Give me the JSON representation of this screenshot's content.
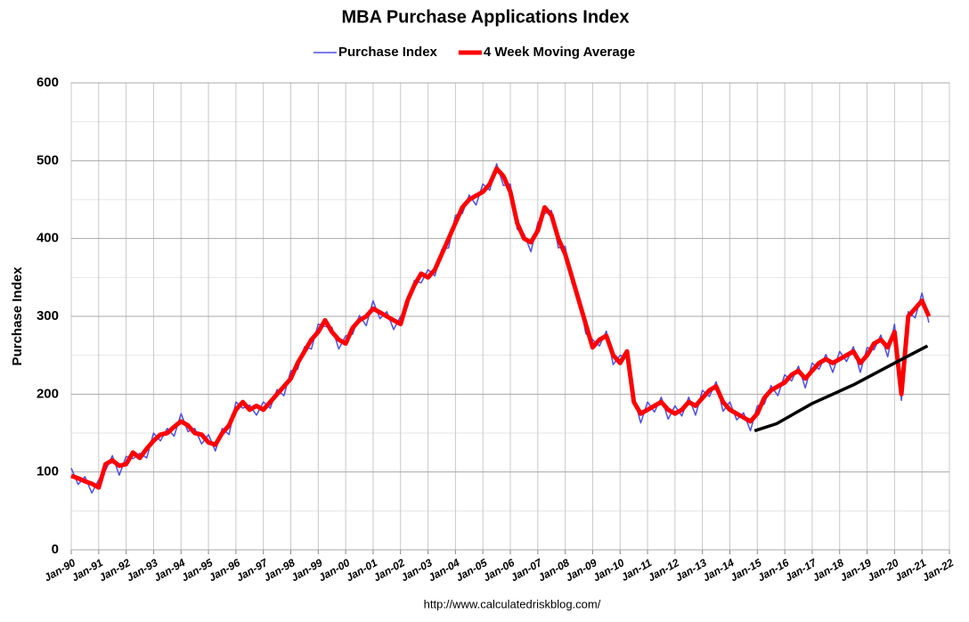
{
  "chart_data": {
    "type": "line",
    "title": "MBA Purchase Applications Index",
    "y_label": "Purchase Index",
    "source": "http://www.calculatedriskblog.com/",
    "grid": true,
    "legend": "top",
    "xlim": [
      1990,
      2022
    ],
    "xticks": [
      {
        "value": 1990,
        "label": "Jan-90"
      },
      {
        "value": 1991,
        "label": "Jan-91"
      },
      {
        "value": 1992,
        "label": "Jan-92"
      },
      {
        "value": 1993,
        "label": "Jan-93"
      },
      {
        "value": 1994,
        "label": "Jan-94"
      },
      {
        "value": 1995,
        "label": "Jan-95"
      },
      {
        "value": 1996,
        "label": "Jan-96"
      },
      {
        "value": 1997,
        "label": "Jan-97"
      },
      {
        "value": 1998,
        "label": "Jan-98"
      },
      {
        "value": 1999,
        "label": "Jan-99"
      },
      {
        "value": 2000,
        "label": "Jan-00"
      },
      {
        "value": 2001,
        "label": "Jan-01"
      },
      {
        "value": 2002,
        "label": "Jan-02"
      },
      {
        "value": 2003,
        "label": "Jan-03"
      },
      {
        "value": 2004,
        "label": "Jan-04"
      },
      {
        "value": 2005,
        "label": "Jan-05"
      },
      {
        "value": 2006,
        "label": "Jan-06"
      },
      {
        "value": 2007,
        "label": "Jan-07"
      },
      {
        "value": 2008,
        "label": "Jan-08"
      },
      {
        "value": 2009,
        "label": "Jan-09"
      },
      {
        "value": 2010,
        "label": "Jan-10"
      },
      {
        "value": 2011,
        "label": "Jan-11"
      },
      {
        "value": 2012,
        "label": "Jan-12"
      },
      {
        "value": 2013,
        "label": "Jan-13"
      },
      {
        "value": 2014,
        "label": "Jan-14"
      },
      {
        "value": 2015,
        "label": "Jan-15"
      },
      {
        "value": 2016,
        "label": "Jan-16"
      },
      {
        "value": 2017,
        "label": "Jan-17"
      },
      {
        "value": 2018,
        "label": "Jan-18"
      },
      {
        "value": 2019,
        "label": "Jan-19"
      },
      {
        "value": 2020,
        "label": "Jan-20"
      },
      {
        "value": 2021,
        "label": "Jan-21"
      },
      {
        "value": 2022,
        "label": "Jan-22"
      }
    ],
    "ylim": [
      0,
      600
    ],
    "yticks": [
      0,
      100,
      200,
      300,
      400,
      500,
      600
    ],
    "minor_yticks": [
      50,
      150,
      250,
      350,
      450,
      550
    ],
    "x": [
      1990,
      1990.25,
      1990.5,
      1990.75,
      1991,
      1991.25,
      1991.5,
      1991.75,
      1992,
      1992.25,
      1992.5,
      1992.75,
      1993,
      1993.25,
      1993.5,
      1993.75,
      1994,
      1994.25,
      1994.5,
      1994.75,
      1995,
      1995.25,
      1995.5,
      1995.75,
      1996,
      1996.25,
      1996.5,
      1996.75,
      1997,
      1997.25,
      1997.5,
      1997.75,
      1998,
      1998.25,
      1998.5,
      1998.75,
      1999,
      1999.25,
      1999.5,
      1999.75,
      2000,
      2000.25,
      2000.5,
      2000.75,
      2001,
      2001.25,
      2001.5,
      2001.75,
      2002,
      2002.25,
      2002.5,
      2002.75,
      2003,
      2003.25,
      2003.5,
      2003.75,
      2004,
      2004.25,
      2004.5,
      2004.75,
      2005,
      2005.25,
      2005.5,
      2005.75,
      2006,
      2006.25,
      2006.5,
      2006.75,
      2007,
      2007.25,
      2007.5,
      2007.75,
      2008,
      2008.25,
      2008.5,
      2008.75,
      2009,
      2009.25,
      2009.5,
      2009.75,
      2010,
      2010.25,
      2010.5,
      2010.75,
      2011,
      2011.25,
      2011.5,
      2011.75,
      2012,
      2012.25,
      2012.5,
      2012.75,
      2013,
      2013.25,
      2013.5,
      2013.75,
      2014,
      2014.25,
      2014.5,
      2014.75,
      2015,
      2015.25,
      2015.5,
      2015.75,
      2016,
      2016.25,
      2016.5,
      2016.75,
      2017,
      2017.25,
      2017.5,
      2017.75,
      2018,
      2018.25,
      2018.5,
      2018.75,
      2019,
      2019.25,
      2019.5,
      2019.75,
      2020,
      2020.25,
      2020.5,
      2020.75,
      2021,
      2021.25
    ],
    "series": [
      {
        "name": "Purchase Index",
        "color": "#4f4fe6",
        "width": 1.5,
        "values": [
          105,
          84,
          94,
          73,
          90,
          102,
          121,
          96,
          120,
          117,
          124,
          118,
          150,
          140,
          156,
          146,
          175,
          152,
          156,
          136,
          148,
          127,
          156,
          148,
          190,
          182,
          186,
          173,
          190,
          182,
          206,
          198,
          230,
          232,
          261,
          258,
          290,
          287,
          286,
          258,
          275,
          277,
          301,
          288,
          320,
          297,
          306,
          283,
          300,
          312,
          346,
          343,
          360,
          352,
          386,
          388,
          430,
          432,
          456,
          443,
          470,
          462,
          496,
          468,
          470,
          412,
          406,
          383,
          420,
          432,
          436,
          388,
          390,
          342,
          326,
          278,
          270,
          262,
          281,
          238,
          250,
          247,
          196,
          163,
          190,
          177,
          196,
          168,
          185,
          172,
          196,
          173,
          205,
          197,
          216,
          178,
          190,
          167,
          176,
          153,
          185,
          187,
          211,
          198,
          225,
          217,
          236,
          208,
          240,
          232,
          251,
          228,
          255,
          242,
          261,
          228,
          260,
          257,
          276,
          248,
          290,
          192,
          306,
          298,
          330,
          292
        ]
      },
      {
        "name": "4 Week Moving Average",
        "color": "#ff0000",
        "width": 5,
        "values": [
          95,
          92,
          88,
          85,
          80,
          110,
          115,
          108,
          110,
          125,
          118,
          130,
          140,
          148,
          150,
          158,
          165,
          160,
          150,
          148,
          138,
          135,
          150,
          160,
          180,
          190,
          180,
          185,
          180,
          190,
          200,
          210,
          220,
          240,
          255,
          270,
          280,
          295,
          280,
          270,
          265,
          285,
          295,
          300,
          310,
          305,
          300,
          295,
          290,
          320,
          340,
          355,
          350,
          360,
          380,
          400,
          420,
          440,
          450,
          455,
          460,
          470,
          490,
          480,
          460,
          420,
          400,
          395,
          410,
          440,
          430,
          400,
          380,
          350,
          320,
          290,
          260,
          270,
          275,
          250,
          240,
          255,
          190,
          175,
          180,
          185,
          190,
          180,
          175,
          180,
          190,
          185,
          195,
          205,
          210,
          190,
          180,
          175,
          170,
          165,
          175,
          195,
          205,
          210,
          215,
          225,
          230,
          220,
          230,
          240,
          245,
          240,
          245,
          250,
          255,
          240,
          250,
          265,
          270,
          260,
          280,
          200,
          300,
          310,
          320,
          300
        ]
      },
      {
        "color": "#000000",
        "width": 3.5,
        "x": [
          2014.9,
          2015.7,
          2017,
          2018.5,
          2020,
          2021.2
        ],
        "values": [
          153,
          162,
          188,
          212,
          240,
          262
        ]
      }
    ]
  }
}
